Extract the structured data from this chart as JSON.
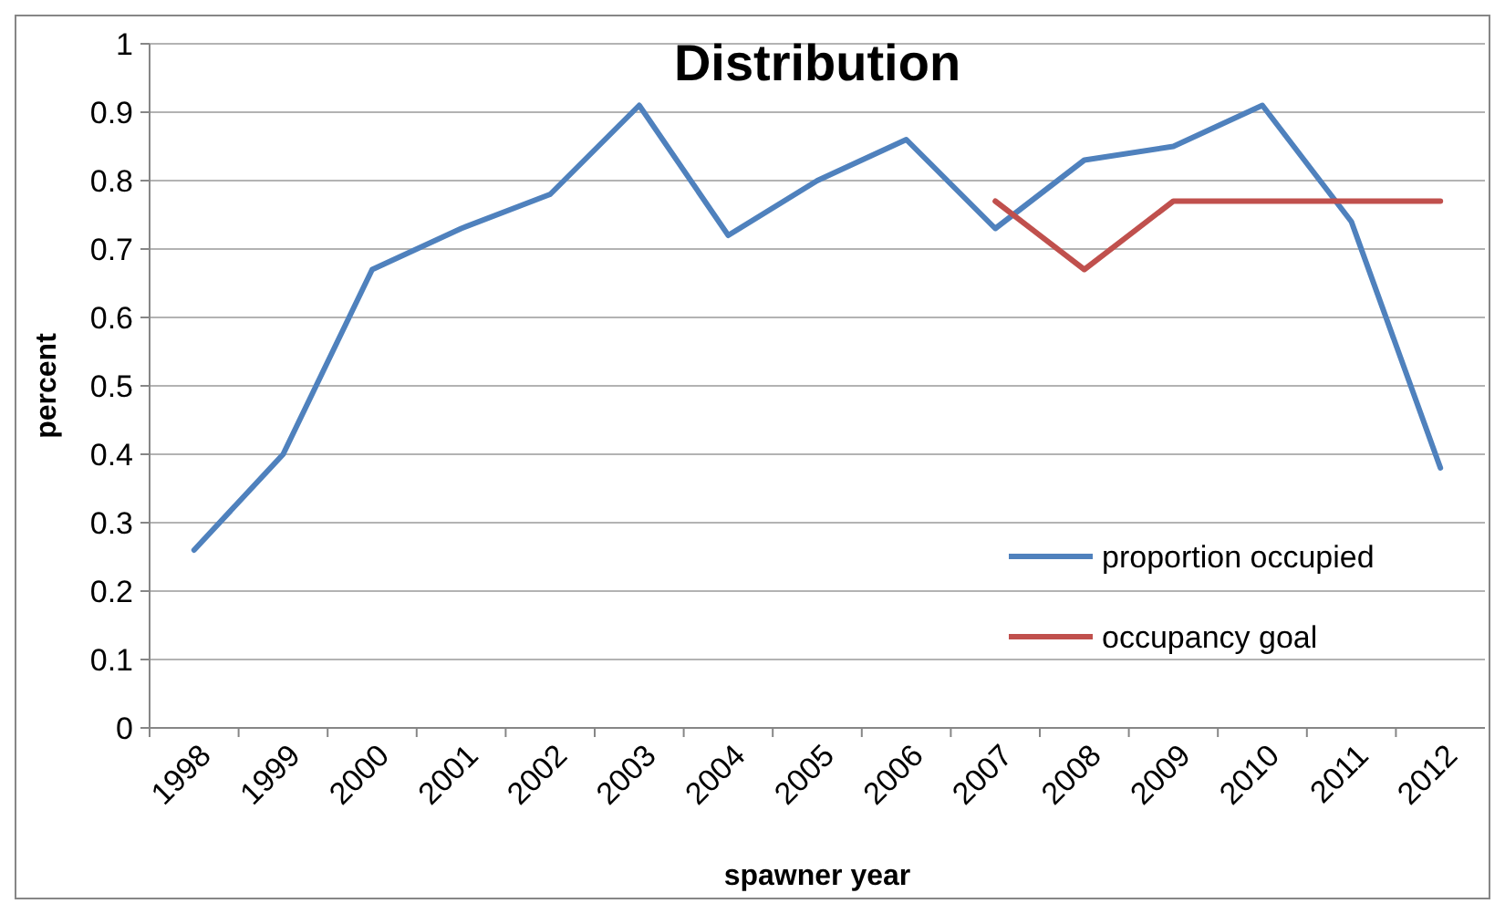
{
  "chart_data": {
    "type": "line",
    "title": "Distribution",
    "xlabel": "spawner year",
    "ylabel": "percent",
    "categories": [
      "1998",
      "1999",
      "2000",
      "2001",
      "2002",
      "2003",
      "2004",
      "2005",
      "2006",
      "2007",
      "2008",
      "2009",
      "2010",
      "2011",
      "2012"
    ],
    "series": [
      {
        "name": "proportion occupied",
        "color": "#4f81bd",
        "values": [
          0.26,
          0.4,
          0.67,
          0.73,
          0.78,
          0.91,
          0.72,
          0.8,
          0.86,
          0.73,
          0.83,
          0.85,
          0.91,
          0.74,
          0.38
        ]
      },
      {
        "name": "occupancy goal",
        "color": "#c0504d",
        "values": [
          null,
          null,
          null,
          null,
          null,
          null,
          null,
          null,
          null,
          0.77,
          0.67,
          0.77,
          0.77,
          0.77,
          0.77
        ]
      }
    ],
    "ylim": [
      0,
      1
    ],
    "yticks": [
      0,
      0.1,
      0.2,
      0.3,
      0.4,
      0.5,
      0.6,
      0.7,
      0.8,
      0.9,
      1
    ],
    "grid": "y",
    "legend": "bottom right",
    "marker": "none",
    "line_style": "solid"
  }
}
